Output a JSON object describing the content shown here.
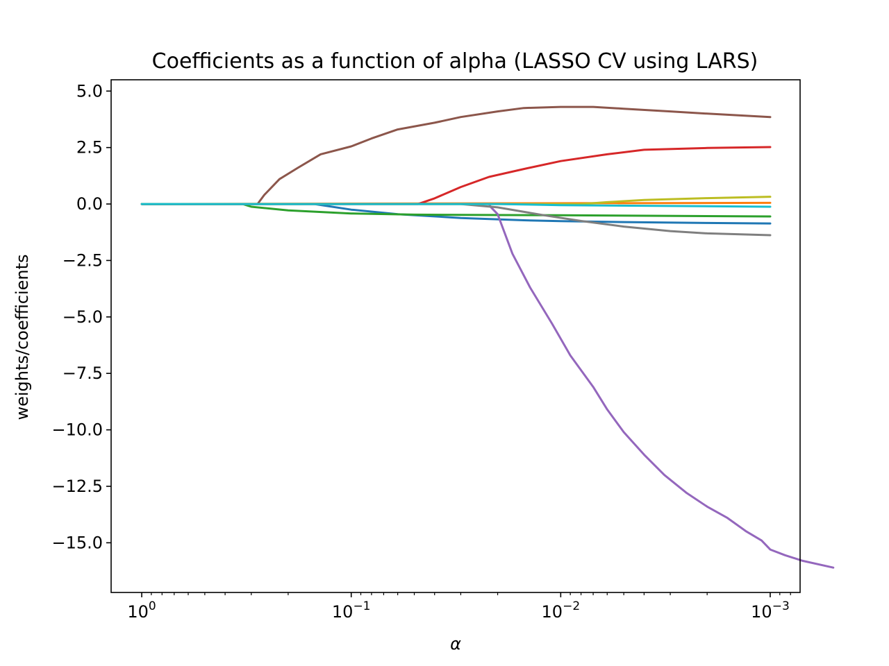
{
  "chart_data": {
    "type": "line",
    "title": "Coefficients as a function of alpha (LASSO CV using LARS)",
    "xlabel": "α",
    "ylabel": "weights/coefficients",
    "x_scale": "log",
    "x_inverted": true,
    "xlim": [
      1.4,
      0.00072
    ],
    "ylim": [
      -17.2,
      5.5
    ],
    "grid": false,
    "legend": "none",
    "x_ticks": [
      {
        "value": 1,
        "base": "10",
        "exp": "0"
      },
      {
        "value": 0.1,
        "base": "10",
        "exp": "−1"
      },
      {
        "value": 0.01,
        "base": "10",
        "exp": "−2"
      },
      {
        "value": 0.001,
        "base": "10",
        "exp": "−3"
      }
    ],
    "y_ticks": [
      {
        "value": 5,
        "label": "5.0"
      },
      {
        "value": 2.5,
        "label": "2.5"
      },
      {
        "value": 0,
        "label": "0.0"
      },
      {
        "value": -2.5,
        "label": "−2.5"
      },
      {
        "value": -5,
        "label": "−5.0"
      },
      {
        "value": -7.5,
        "label": "−7.5"
      },
      {
        "value": -10,
        "label": "−10.0"
      },
      {
        "value": -12.5,
        "label": "−12.5"
      },
      {
        "value": -15,
        "label": "−15.0"
      }
    ],
    "series": [
      {
        "color": "#1f77b4",
        "points": [
          [
            1,
            0
          ],
          [
            0.15,
            0
          ],
          [
            0.1,
            -0.25
          ],
          [
            0.06,
            -0.45
          ],
          [
            0.03,
            -0.62
          ],
          [
            0.015,
            -0.72
          ],
          [
            0.01,
            -0.76
          ],
          [
            0.005,
            -0.8
          ],
          [
            0.002,
            -0.84
          ],
          [
            0.001,
            -0.86
          ]
        ]
      },
      {
        "color": "#ff7f0e",
        "points": [
          [
            1,
            0
          ],
          [
            0.001,
            0.05
          ]
        ]
      },
      {
        "color": "#2ca02c",
        "points": [
          [
            1,
            0
          ],
          [
            0.33,
            0
          ],
          [
            0.3,
            -0.12
          ],
          [
            0.2,
            -0.28
          ],
          [
            0.1,
            -0.42
          ],
          [
            0.05,
            -0.47
          ],
          [
            0.01,
            -0.5
          ],
          [
            0.001,
            -0.55
          ]
        ]
      },
      {
        "color": "#d62728",
        "points": [
          [
            1,
            0
          ],
          [
            0.048,
            0
          ],
          [
            0.04,
            0.25
          ],
          [
            0.03,
            0.75
          ],
          [
            0.022,
            1.2
          ],
          [
            0.015,
            1.55
          ],
          [
            0.01,
            1.9
          ],
          [
            0.006,
            2.2
          ],
          [
            0.004,
            2.4
          ],
          [
            0.002,
            2.48
          ],
          [
            0.001,
            2.52
          ]
        ]
      },
      {
        "color": "#9467bd",
        "points": [
          [
            1,
            0
          ],
          [
            0.022,
            0
          ],
          [
            0.0215,
            -0.15
          ],
          [
            0.02,
            -0.45
          ],
          [
            0.017,
            -2.2
          ],
          [
            0.014,
            -3.7
          ],
          [
            0.011,
            -5.3
          ],
          [
            0.009,
            -6.7
          ],
          [
            0.007,
            -8.1
          ],
          [
            0.006,
            -9.1
          ],
          [
            0.005,
            -10.1
          ],
          [
            0.004,
            -11.1
          ],
          [
            0.0032,
            -12.0
          ],
          [
            0.0025,
            -12.8
          ],
          [
            0.002,
            -13.4
          ],
          [
            0.0016,
            -13.9
          ],
          [
            0.0013,
            -14.5
          ],
          [
            0.0011,
            -14.9
          ],
          [
            0.001,
            -15.3
          ],
          [
            0.00085,
            -15.55
          ],
          [
            0.0007,
            -15.8
          ],
          [
            0.0005,
            -16.1
          ]
        ]
      },
      {
        "color": "#8c564b",
        "points": [
          [
            1,
            0
          ],
          [
            0.28,
            0
          ],
          [
            0.26,
            0.4
          ],
          [
            0.22,
            1.1
          ],
          [
            0.18,
            1.6
          ],
          [
            0.14,
            2.2
          ],
          [
            0.1,
            2.55
          ],
          [
            0.08,
            2.9
          ],
          [
            0.06,
            3.3
          ],
          [
            0.04,
            3.6
          ],
          [
            0.03,
            3.85
          ],
          [
            0.02,
            4.1
          ],
          [
            0.015,
            4.25
          ],
          [
            0.01,
            4.3
          ],
          [
            0.007,
            4.3
          ],
          [
            0.005,
            4.22
          ],
          [
            0.003,
            4.1
          ],
          [
            0.002,
            4.0
          ],
          [
            0.001,
            3.85
          ]
        ]
      },
      {
        "color": "#7f7f7f",
        "points": [
          [
            1,
            0
          ],
          [
            0.03,
            0
          ],
          [
            0.02,
            -0.15
          ],
          [
            0.012,
            -0.5
          ],
          [
            0.008,
            -0.75
          ],
          [
            0.005,
            -1.0
          ],
          [
            0.003,
            -1.2
          ],
          [
            0.002,
            -1.3
          ],
          [
            0.001,
            -1.38
          ]
        ]
      },
      {
        "color": "#bcbd22",
        "points": [
          [
            1,
            0
          ],
          [
            0.008,
            0
          ],
          [
            0.006,
            0.08
          ],
          [
            0.004,
            0.18
          ],
          [
            0.002,
            0.26
          ],
          [
            0.001,
            0.32
          ]
        ]
      },
      {
        "color": "#17becf",
        "points": [
          [
            1,
            0
          ],
          [
            0.02,
            0
          ],
          [
            0.01,
            -0.05
          ],
          [
            0.001,
            -0.12
          ]
        ]
      }
    ]
  }
}
